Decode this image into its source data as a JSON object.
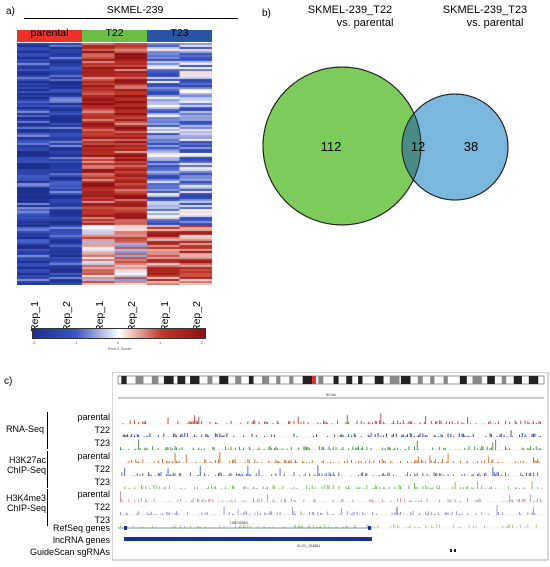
{
  "panel_a": {
    "label": "a)",
    "title": "SKMEL-239",
    "groups": [
      {
        "name": "parental",
        "color": "#e8322a"
      },
      {
        "name": "T22",
        "color": "#6cbf44"
      },
      {
        "name": "T23",
        "color": "#2a55a6"
      }
    ],
    "replicates": [
      "Rep_1",
      "Rep_2",
      "Rep_1",
      "Rep_2",
      "Rep_1",
      "Rep_2"
    ],
    "colorbar": {
      "ticks": [
        "-2",
        "-1",
        "0",
        "1",
        "2"
      ],
      "label": "Row Z-Score",
      "colors": [
        "#1c2f8f",
        "#3a55c4",
        "#ffffff",
        "#c0372a",
        "#8e0f12"
      ]
    }
  },
  "panel_b": {
    "label": "b)",
    "set1": {
      "title_line1": "SKMEL-239_T22",
      "title_line2": "vs. parental",
      "color": "#7dcb5a"
    },
    "set2": {
      "title_line1": "SKMEL-239_T23",
      "title_line2": "vs. parental",
      "color": "#7bb6dd"
    },
    "only_set1": "112",
    "overlap": "12",
    "only_set2": "38",
    "overlap_color": "#4a8b86"
  },
  "panel_c": {
    "label": "c)",
    "scale_text": "50 kb",
    "tracks": [
      {
        "assay": "RNA-Seq",
        "samples": [
          "parental",
          "T22",
          "T23"
        ],
        "colors": [
          "#c0392b",
          "#1f3fa3",
          "#3a8f3a"
        ]
      },
      {
        "assay_line1": "H3K27ac",
        "assay_line2": "ChIP-Seq",
        "samples": [
          "parental",
          "T22",
          "T23"
        ],
        "colors": [
          "#d2691e",
          "#4b5fc9",
          "#6fbf5a"
        ]
      },
      {
        "assay_line1": "H3K4me3",
        "assay_line2": "ChIP-Seq",
        "samples": [
          "parental",
          "T22",
          "T23"
        ],
        "colors": [
          "#d48ca0",
          "#8f93d8",
          "#a9cf86"
        ]
      }
    ],
    "annotations": [
      "RefSeq genes",
      "lncRNA genes",
      "GuideScan sgRNAs"
    ],
    "gene_label_refseq": "LINC00854",
    "gene_label_lnc": "XLOC_004884"
  }
}
